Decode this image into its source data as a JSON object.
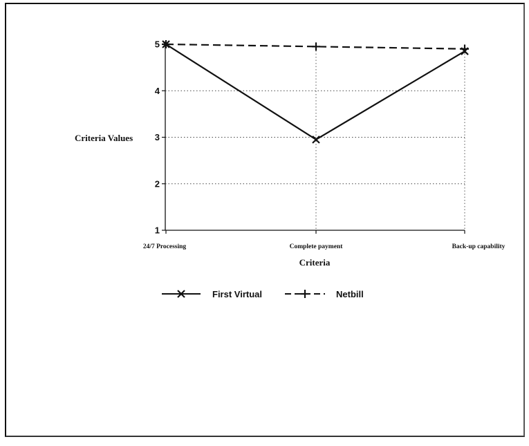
{
  "chart_data": {
    "type": "line",
    "title": "",
    "xlabel": "Criteria",
    "ylabel": "Criteria Values",
    "categories": [
      "24/7 Processing",
      "Complete payment",
      "Back-up capability"
    ],
    "ylim": [
      1,
      5
    ],
    "yticks": [
      "1",
      "2",
      "3",
      "4",
      "5"
    ],
    "grid": true,
    "legend_position": "bottom",
    "series": [
      {
        "name": "First Virtual",
        "values": [
          5,
          2.95,
          4.85
        ],
        "line_style": "solid",
        "marker": "x",
        "color": "#111111"
      },
      {
        "name": "Netbill",
        "values": [
          5,
          4.95,
          4.9
        ],
        "line_style": "dashed",
        "marker": "+",
        "color": "#111111"
      }
    ]
  }
}
